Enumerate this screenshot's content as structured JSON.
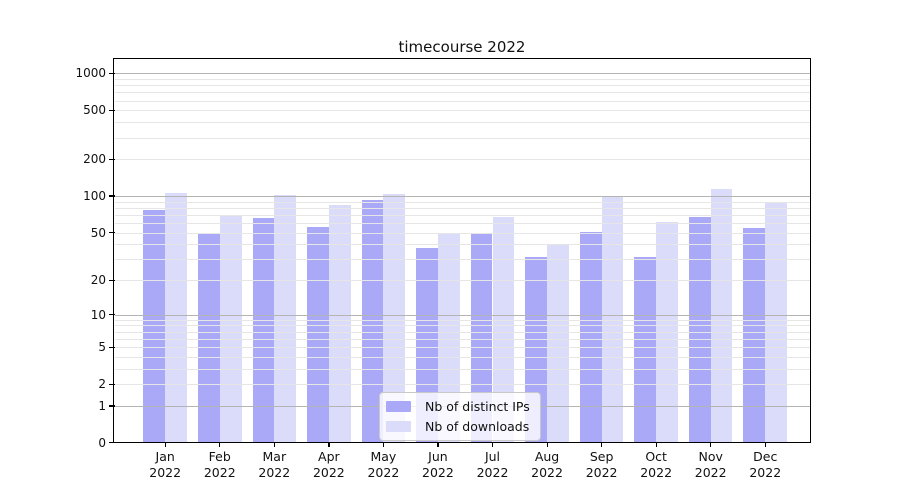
{
  "chart_data": {
    "type": "bar",
    "title": "timecourse 2022",
    "categories": [
      "Jan",
      "Feb",
      "Mar",
      "Apr",
      "May",
      "Jun",
      "Jul",
      "Aug",
      "Sep",
      "Oct",
      "Nov",
      "Dec"
    ],
    "year_label": "2022",
    "series": [
      {
        "name": "Nb of distinct IPs",
        "color": "#a9a9f7",
        "values": [
          77,
          49,
          66,
          56,
          92,
          37,
          50,
          31,
          51,
          31,
          67,
          55
        ]
      },
      {
        "name": "Nb of downloads",
        "color": "#dbdbfa",
        "values": [
          105,
          70,
          101,
          84,
          104,
          50,
          67,
          40,
          100,
          61,
          113,
          89
        ]
      }
    ],
    "yscale": "log10(y+1)",
    "y_tick_values": [
      1000,
      500,
      200,
      100,
      50,
      20,
      10,
      5,
      2,
      1,
      0
    ],
    "y_major_gridline_values": [
      1,
      10,
      100,
      1000
    ],
    "ylim": [
      0,
      1280
    ],
    "grid": "on",
    "legend_position": "lower center (inside axes)",
    "colors": {
      "major_grid": "#b4b4b4",
      "minor_grid": "#e6e6e6",
      "axis": "#000000",
      "background": "#ffffff"
    }
  }
}
